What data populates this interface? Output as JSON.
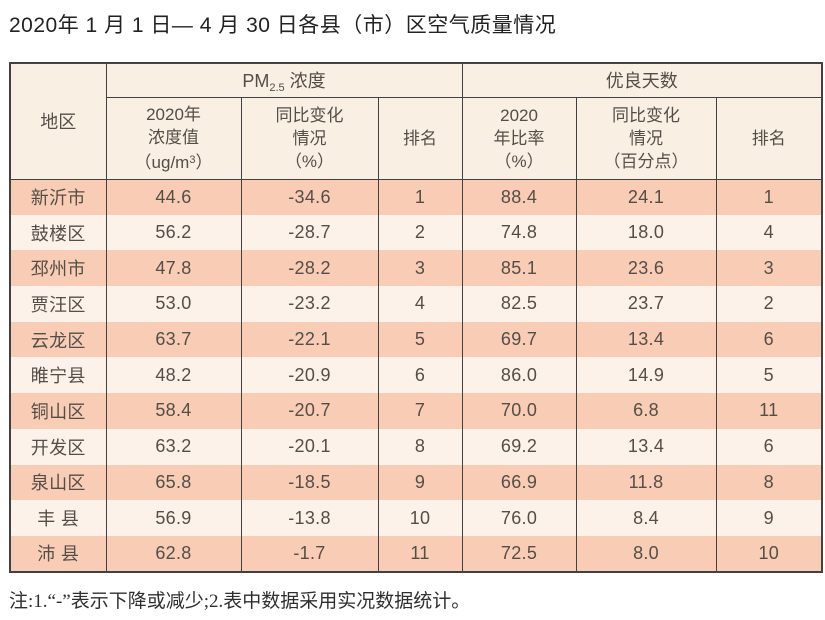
{
  "page": {
    "title": "2020年 1 月 1 日— 4 月 30 日各县（市）区空气质量情况",
    "footnote": "注:1.“-”表示下降或减少;2.表中数据采用实况数据统计。"
  },
  "colors": {
    "row_shaded": "#f8ccb5",
    "row_light": "#fdf2e9",
    "header_bg": "#f9efe3",
    "border": "#414141",
    "text": "#544e48"
  },
  "table": {
    "region_header": "地区",
    "groups": {
      "pm": {
        "pre": "PM",
        "sub": "2.5",
        "post": " 浓度"
      },
      "good_days": "优良天数"
    },
    "headers": {
      "pm_value": {
        "l1": "2020年",
        "l2": "浓度值",
        "unit_pre": "（ug/m",
        "unit_sup": "3",
        "unit_post": "）"
      },
      "pm_change": {
        "l1": "同比变化",
        "l2": "情况",
        "l3": "（%）"
      },
      "pm_rank": "排名",
      "good_rate": {
        "l1": "2020",
        "l2": "年比率",
        "l3": "（%）"
      },
      "good_change": {
        "l1": "同比变化",
        "l2": "情况",
        "l3": "（百分点）"
      },
      "good_rank": "排名"
    },
    "rows": [
      {
        "region": "新沂市",
        "pm": "44.6",
        "pm_chg": "-34.6",
        "pm_rank": "1",
        "good": "88.4",
        "good_chg": "24.1",
        "good_rank": "1"
      },
      {
        "region": "鼓楼区",
        "pm": "56.2",
        "pm_chg": "-28.7",
        "pm_rank": "2",
        "good": "74.8",
        "good_chg": "18.0",
        "good_rank": "4"
      },
      {
        "region": "邳州市",
        "pm": "47.8",
        "pm_chg": "-28.2",
        "pm_rank": "3",
        "good": "85.1",
        "good_chg": "23.6",
        "good_rank": "3"
      },
      {
        "region": "贾汪区",
        "pm": "53.0",
        "pm_chg": "-23.2",
        "pm_rank": "4",
        "good": "82.5",
        "good_chg": "23.7",
        "good_rank": "2"
      },
      {
        "region": "云龙区",
        "pm": "63.7",
        "pm_chg": "-22.1",
        "pm_rank": "5",
        "good": "69.7",
        "good_chg": "13.4",
        "good_rank": "6"
      },
      {
        "region": "睢宁县",
        "pm": "48.2",
        "pm_chg": "-20.9",
        "pm_rank": "6",
        "good": "86.0",
        "good_chg": "14.9",
        "good_rank": "5"
      },
      {
        "region": "铜山区",
        "pm": "58.4",
        "pm_chg": "-20.7",
        "pm_rank": "7",
        "good": "70.0",
        "good_chg": "6.8",
        "good_rank": "11"
      },
      {
        "region": "开发区",
        "pm": "63.2",
        "pm_chg": "-20.1",
        "pm_rank": "8",
        "good": "69.2",
        "good_chg": "13.4",
        "good_rank": "6"
      },
      {
        "region": "泉山区",
        "pm": "65.8",
        "pm_chg": "-18.5",
        "pm_rank": "9",
        "good": "66.9",
        "good_chg": "11.8",
        "good_rank": "8"
      },
      {
        "region": "丰 县",
        "pm": "56.9",
        "pm_chg": "-13.8",
        "pm_rank": "10",
        "good": "76.0",
        "good_chg": "8.4",
        "good_rank": "9"
      },
      {
        "region": "沛 县",
        "pm": "62.8",
        "pm_chg": "-1.7",
        "pm_rank": "11",
        "good": "72.5",
        "good_chg": "8.0",
        "good_rank": "10"
      }
    ]
  }
}
